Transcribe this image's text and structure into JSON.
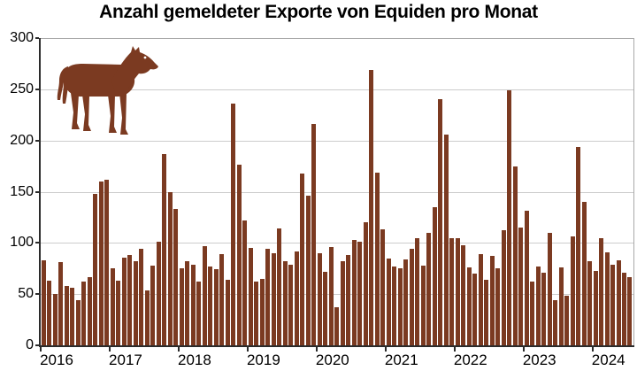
{
  "chart_data": {
    "type": "bar",
    "title": "Anzahl gemeldeter Exporte von Equiden pro Monat",
    "xlabel": "",
    "ylabel": "",
    "ylim": [
      0,
      300
    ],
    "yticks": [
      0,
      50,
      100,
      150,
      200,
      250,
      300
    ],
    "grid": true,
    "legend": null,
    "bar_color": "#7B3A21",
    "gridline_color": "#cccccc",
    "axis_color": "#2b2b2b",
    "frame_color": "#a8a8a8",
    "x_tick_labels": [
      "2016",
      "2017",
      "2018",
      "2019",
      "2020",
      "2021",
      "2022",
      "2023",
      "2024"
    ],
    "years": [
      {
        "year": "2016",
        "values": [
          83,
          63,
          50,
          81,
          58,
          56,
          44,
          62,
          67,
          148,
          160,
          162
        ]
      },
      {
        "year": "2017",
        "values": [
          75,
          63,
          86,
          88,
          82,
          94,
          54,
          78,
          101,
          187,
          150,
          133
        ]
      },
      {
        "year": "2018",
        "values": [
          75,
          82,
          79,
          62,
          97,
          77,
          74,
          89,
          64,
          236,
          176,
          122
        ]
      },
      {
        "year": "2019",
        "values": [
          95,
          62,
          65,
          94,
          90,
          114,
          82,
          79,
          92,
          168,
          146,
          216
        ]
      },
      {
        "year": "2020",
        "values": [
          90,
          72,
          96,
          37,
          82,
          88,
          103,
          101,
          120,
          269,
          169,
          113
        ]
      },
      {
        "year": "2021",
        "values": [
          85,
          77,
          75,
          84,
          94,
          105,
          78,
          110,
          135,
          240,
          206,
          105
        ]
      },
      {
        "year": "2022",
        "values": [
          105,
          98,
          76,
          70,
          89,
          64,
          87,
          75,
          112,
          249,
          175,
          115
        ]
      },
      {
        "year": "2023",
        "values": [
          131,
          62,
          77,
          71,
          110,
          44,
          76,
          48,
          106,
          194,
          140,
          82
        ]
      },
      {
        "year": "2024",
        "values": [
          73,
          105,
          91,
          79,
          83,
          71,
          67,
          56
        ]
      }
    ],
    "icon": {
      "name": "horse-icon",
      "color": "#7B3A21"
    }
  }
}
